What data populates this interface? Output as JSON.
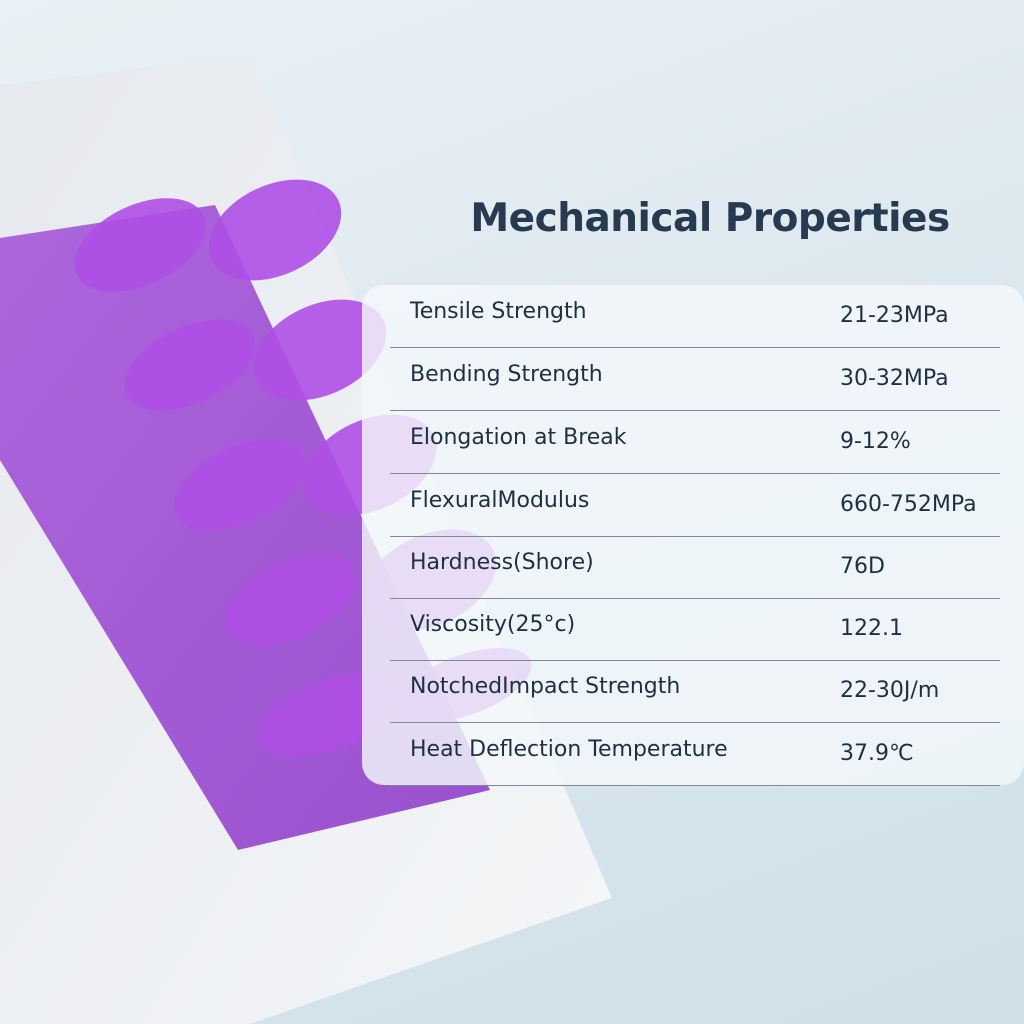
{
  "title": "Mechanical Properties",
  "colors": {
    "text": "#1f3044",
    "resin": "#9b3fd6",
    "background": "#dbe7ee"
  },
  "properties": [
    {
      "label": "Tensile Strength",
      "value": "21-23MPa"
    },
    {
      "label": "Bending Strength",
      "value": "30-32MPa"
    },
    {
      "label": "Elongation at Break",
      "value": "9-12%"
    },
    {
      "label": "FlexuralModulus",
      "value": "660-752MPa"
    },
    {
      "label": "Hardness(Shore)",
      "value": "76D"
    },
    {
      "label": "Viscosity(25°c)",
      "value": "122.1"
    },
    {
      "label": "NotchedImpact Strength",
      "value": "22-30J/m"
    },
    {
      "label": "Heat Deflection Temperature",
      "value": "37.9℃"
    }
  ]
}
